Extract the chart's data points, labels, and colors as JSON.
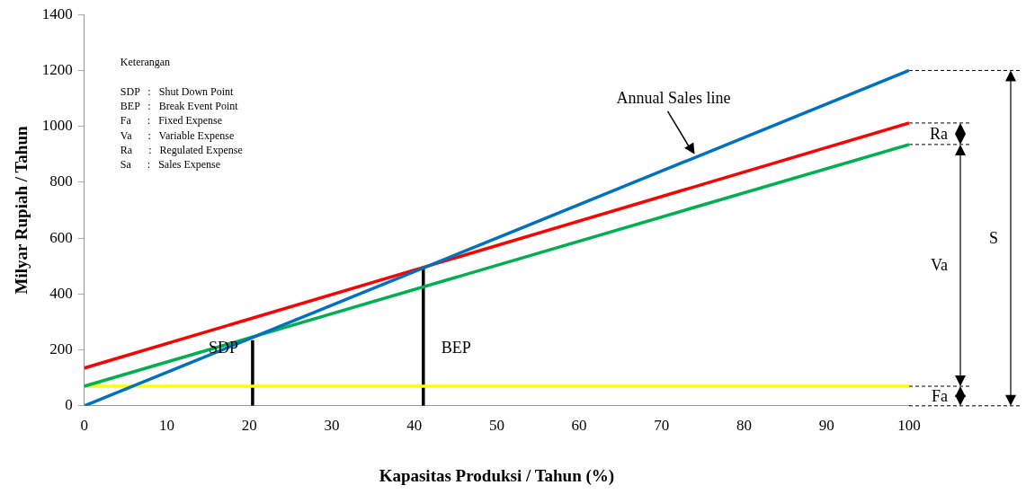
{
  "chart_data": {
    "type": "line",
    "xlabel": "Kapasitas Produksi / Tahun (%)",
    "ylabel": "Milyar Rupiah / Tahun",
    "xlim": [
      0,
      100
    ],
    "xticks": [
      0,
      10,
      20,
      30,
      40,
      50,
      60,
      70,
      80,
      90,
      100
    ],
    "ylim": [
      0,
      1400
    ],
    "yticks": [
      0,
      200,
      400,
      600,
      800,
      1000,
      1200,
      1400
    ],
    "grid": false,
    "legend": false,
    "marker": "none",
    "line_style": "solid",
    "series": [
      {
        "x": [
          0,
          100
        ],
        "values": [
          0,
          1200
        ],
        "color": "#0070c0"
      },
      {
        "x": [
          0,
          100
        ],
        "values": [
          135,
          1012
        ],
        "color": "#ff0000"
      },
      {
        "x": [
          0,
          100
        ],
        "values": [
          70,
          935
        ],
        "color": "#00b050"
      },
      {
        "x": [
          0,
          100
        ],
        "values": [
          70,
          70
        ],
        "color": "#ffff00"
      },
      {
        "x": [
          20.4,
          20.4
        ],
        "values": [
          0,
          235
        ],
        "color": "#000000"
      },
      {
        "x": [
          41.1,
          41.1
        ],
        "values": [
          0,
          493
        ],
        "color": "#000000"
      }
    ],
    "annotations": [
      "Keterangan",
      "SDP   :   Shut Down Point",
      "BEP   :   Break Event Point",
      "Fa      :   Fixed Expense",
      "Va      :   Variable Expense",
      "Ra      :   Regulated Expense",
      "Sa      :   Sales Expense",
      {
        "text": "Annual Sales line",
        "x": 74,
        "y": 900
      },
      "SDP",
      "BEP",
      "Ra",
      "Va",
      "Fa",
      "S"
    ]
  }
}
